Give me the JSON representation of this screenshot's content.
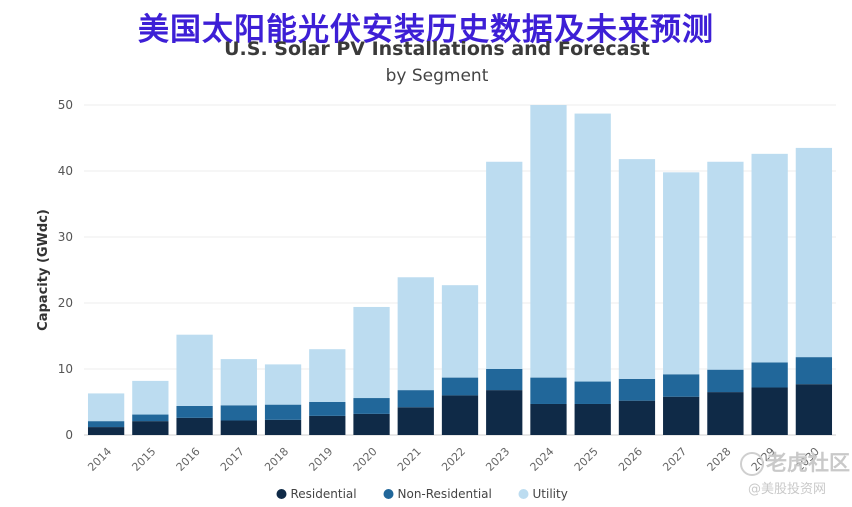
{
  "banner": "美国太阳能光伏安装历史数据及未来预测",
  "watermark": {
    "text": "老虎社区",
    "handle": "@美股投资网"
  },
  "chart_data": {
    "type": "bar",
    "stacked": true,
    "title": "U.S. Solar PV Installations and Forecast",
    "subtitle": "by Segment",
    "xlabel": "",
    "ylabel": "Capacity (GWdc)",
    "ylim": [
      0,
      50
    ],
    "yticks": [
      0,
      10,
      20,
      30,
      40,
      50
    ],
    "grid": true,
    "legend": "bottom",
    "categories": [
      "2014",
      "2015",
      "2016",
      "2017",
      "2018",
      "2019",
      "2020",
      "2021",
      "2022",
      "2023",
      "2024",
      "2025",
      "2026",
      "2027",
      "2028",
      "2029",
      "2030"
    ],
    "series": [
      {
        "name": "Residential",
        "color": "#0f2a47",
        "values": [
          1.2,
          2.1,
          2.6,
          2.2,
          2.3,
          2.9,
          3.2,
          4.2,
          6.0,
          6.8,
          4.7,
          4.7,
          5.2,
          5.8,
          6.5,
          7.2,
          7.7
        ]
      },
      {
        "name": "Non-Residential",
        "color": "#21679a",
        "values": [
          0.9,
          1.0,
          1.8,
          2.3,
          2.3,
          2.1,
          2.4,
          2.6,
          2.7,
          3.2,
          4.0,
          3.4,
          3.3,
          3.4,
          3.4,
          3.8,
          4.1
        ]
      },
      {
        "name": "Utility",
        "color": "#bcdcf0",
        "values": [
          4.2,
          5.1,
          10.8,
          7.0,
          6.1,
          8.0,
          13.8,
          17.1,
          14.0,
          31.4,
          41.3,
          40.6,
          33.3,
          30.6,
          31.5,
          31.6,
          31.7
        ]
      }
    ]
  }
}
